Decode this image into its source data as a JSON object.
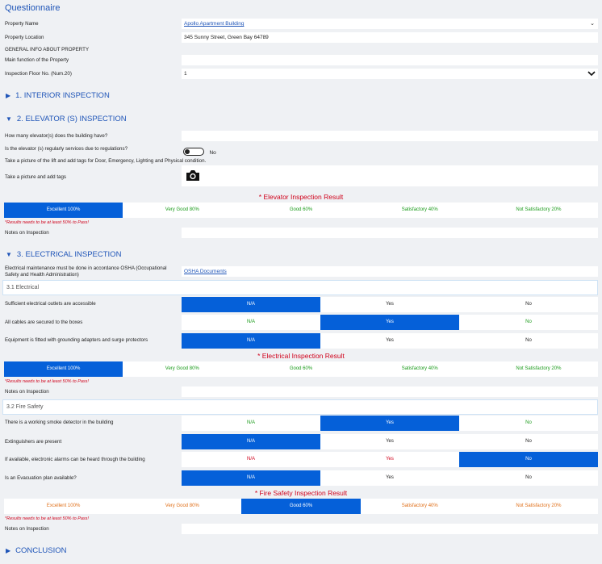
{
  "page_title": "Questionnaire",
  "property_name": {
    "label": "Property Name",
    "value": "Apollo Apartment Building"
  },
  "property_location": {
    "label": "Property Location",
    "value": "345 Sunny Street, Green Bay 64789"
  },
  "general_info": "GENERAL INFO ABOUT PROPERTY",
  "main_function": {
    "label": "Main function of the Property",
    "value": ""
  },
  "inspection_floor": {
    "label": "Inspection Floor No. (Num.20)",
    "value": "1"
  },
  "sections": {
    "interior": "1. INTERIOR INSPECTION",
    "elevator": "2. ELEVATOR (S) INSPECTION",
    "electrical": "3. ELECTRICAL INSPECTION",
    "conclusion": "CONCLUSION"
  },
  "elevator": {
    "q_count": "How many elevator(s) does the building have?",
    "q_serviced": "Is the elevator (s) regularly services due to regulations?",
    "serviced_toggle_label": "No",
    "picture_instruction": "Take a picture of the lift and add tags for Door, Emergency, Lighting and Physical condition.",
    "take_picture_label": "Take a picture and add tags",
    "result_title": "* Elevator Inspection Result",
    "ratings": [
      "Excellent 100%",
      "Very Good 80%",
      "Good 60%",
      "Satisfactory 40%",
      "Not Satisfactory 20%"
    ],
    "warning": "*Results needs to be at least 50% to Pass!",
    "notes_label": "Notes on Inspection"
  },
  "electrical": {
    "osha_text": "Electrical maintenance must be done in accordance OSHA (Occupational Safety and Health Administration)",
    "osha_link": "OSHA Documents",
    "sub_electrical": "3.1 Electrical",
    "options": [
      "N/A",
      "Yes",
      "No"
    ],
    "q1": "Sufficient electrical outlets are accessible",
    "q2": "All cables are secured to the boxes",
    "q3": "Equipment is fitted with grounding adapters and surge protectors",
    "result_title": "* Electrical Inspection Result",
    "ratings": [
      "Excellent 100%",
      "Very Good 80%",
      "Good 60%",
      "Satisfactory 40%",
      "Not Satisfactory 20%"
    ],
    "warning": "*Results needs to be at least 50% to Pass!",
    "notes_label": "Notes on Inspection"
  },
  "fire": {
    "sub_fire": "3.2 Fire Safety",
    "q1": "There is a working smoke detector in the building",
    "q2": "Extinguishers are present",
    "q3": "If available, electronic alarms can be heard through the building",
    "q4": "Is an Evacuation plan available?",
    "result_title": "* Fire Safety Inspection Result",
    "ratings": [
      "Excellent 100%",
      "Very Good 80%",
      "Good 60%",
      "Satisfactory 40%",
      "Not Satisfactory 20%"
    ],
    "warning": "*Results needs to be at least 50% to Pass!",
    "notes_label": "Notes on Inspection"
  },
  "colors": {
    "accent": "#0560d9",
    "title_blue": "#1f55b8",
    "red": "#d0021b",
    "green": "#1a9b1a",
    "orange": "#e0701a"
  },
  "icons": {
    "camera": "camera-icon",
    "expand": "triangle-right-icon",
    "collapse": "triangle-down-icon",
    "dropdown": "chevron-down-icon"
  }
}
